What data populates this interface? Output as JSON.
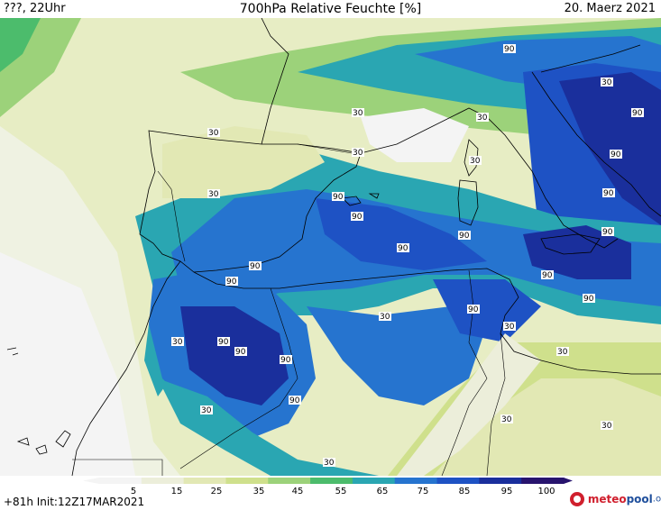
{
  "header": {
    "left": "???, 22Uhr",
    "title": "700hPa Relative Feuchte [%]",
    "right": "20. Maerz 2021"
  },
  "footer": {
    "left": "+81h  Init:12Z17MAR2021"
  },
  "logo": {
    "part1": "meteo",
    "part2": "pool",
    "part3": ".org"
  },
  "colorbar": {
    "ticks": [
      "5",
      "15",
      "25",
      "35",
      "45",
      "55",
      "65",
      "75",
      "85",
      "95",
      "100"
    ],
    "colors": [
      "#f4f4f4",
      "#eceeda",
      "#e2e8b4",
      "#cfe08c",
      "#9cd27a",
      "#4cbc6c",
      "#2aa6b2",
      "#2674cf",
      "#1e52c4",
      "#1a2f9c",
      "#28146e"
    ]
  },
  "contour_labels": [
    "30",
    "30",
    "30",
    "30",
    "30",
    "30",
    "30",
    "30",
    "30",
    "30",
    "30",
    "30",
    "30",
    "30",
    "30",
    "90",
    "90",
    "90",
    "90",
    "90",
    "90",
    "90",
    "90",
    "90",
    "90",
    "90",
    "90",
    "90",
    "90",
    "90",
    "90",
    "90",
    "90"
  ]
}
